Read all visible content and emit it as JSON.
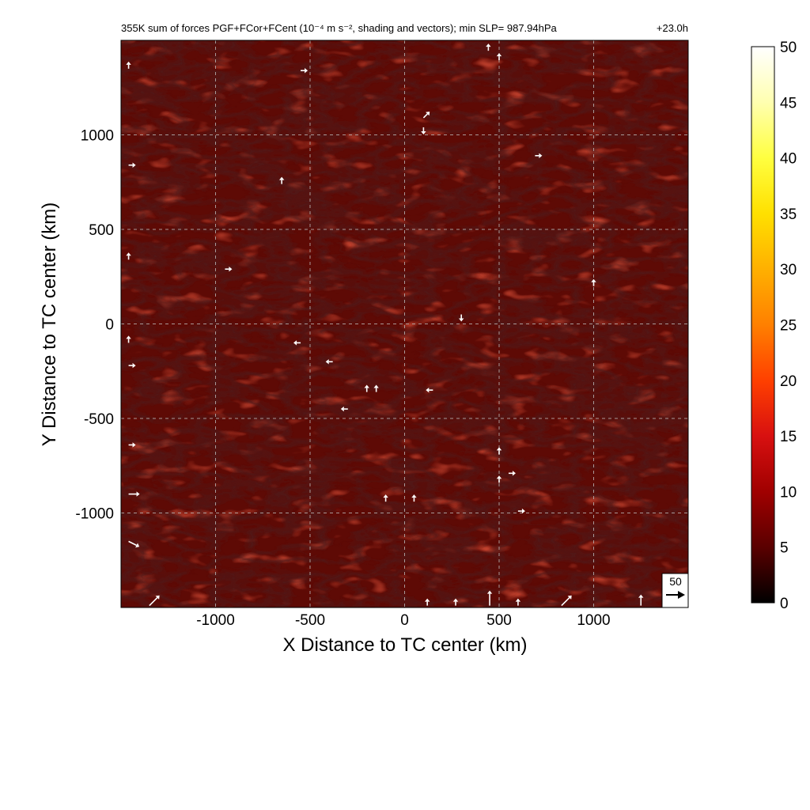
{
  "chart_data": {
    "type": "heatmap",
    "title": "355K sum of forces PGF+FCor+FCent (10⁻⁴ m s⁻², shading and vectors); min SLP= 987.94hPa",
    "time_label": "+23.0h",
    "xlabel": "X Distance to TC center (km)",
    "ylabel": "Y Distance to TC center (km)",
    "xlim": [
      -1500,
      1500
    ],
    "ylim": [
      -1500,
      1500
    ],
    "xticks": [
      -1000,
      -500,
      0,
      500,
      1000
    ],
    "yticks": [
      1000,
      500,
      0,
      -500,
      -1000
    ],
    "grid": true,
    "colorbar": {
      "range": [
        0,
        50
      ],
      "ticks": [
        0,
        5,
        10,
        15,
        20,
        25,
        30,
        35,
        40,
        45,
        50
      ],
      "colormap": [
        "#000000",
        "#5a0000",
        "#a00000",
        "#d81010",
        "#ff4000",
        "#ff8000",
        "#ffb000",
        "#ffe000",
        "#ffff40",
        "#ffffb0",
        "#ffffff"
      ]
    },
    "reference_vector": {
      "label": "50"
    },
    "field_description_colors": {
      "background": "#5e0a05",
      "dark_streaks": "#140202",
      "bright_streaks": "#a01208"
    },
    "vectors": [
      {
        "x": 443,
        "y": 1445,
        "u": 0,
        "v": 1
      },
      {
        "x": 500,
        "y": 1395,
        "u": 0,
        "v": 1
      },
      {
        "x": -550,
        "y": 1340,
        "u": 1,
        "v": 0
      },
      {
        "x": 100,
        "y": 1090,
        "u": 1,
        "v": 1
      },
      {
        "x": 100,
        "y": 1040,
        "u": 0,
        "v": -1
      },
      {
        "x": 690,
        "y": 890,
        "u": 1,
        "v": 0
      },
      {
        "x": -650,
        "y": 740,
        "u": 0,
        "v": 1
      },
      {
        "x": -950,
        "y": 290,
        "u": 1,
        "v": 0
      },
      {
        "x": 1000,
        "y": 200,
        "u": 0,
        "v": 1
      },
      {
        "x": 300,
        "y": 50,
        "u": 0,
        "v": -1
      },
      {
        "x": -550,
        "y": -100,
        "u": -1,
        "v": 0
      },
      {
        "x": -380,
        "y": -200,
        "u": -1,
        "v": 0
      },
      {
        "x": -200,
        "y": -360,
        "u": 0,
        "v": 1
      },
      {
        "x": -150,
        "y": -360,
        "u": 0,
        "v": 1
      },
      {
        "x": 150,
        "y": -350,
        "u": -1,
        "v": 0
      },
      {
        "x": -300,
        "y": -450,
        "u": -1,
        "v": 0
      },
      {
        "x": 500,
        "y": -690,
        "u": 0,
        "v": 1
      },
      {
        "x": 550,
        "y": -790,
        "u": 1,
        "v": 0
      },
      {
        "x": 500,
        "y": -840,
        "u": 0,
        "v": 1
      },
      {
        "x": -100,
        "y": -940,
        "u": 0,
        "v": 1
      },
      {
        "x": 50,
        "y": -940,
        "u": 0,
        "v": 1
      },
      {
        "x": 600,
        "y": -990,
        "u": 1,
        "v": 0
      },
      {
        "x": -1460,
        "y": -640,
        "u": 1,
        "v": 0
      },
      {
        "x": -1460,
        "y": -900,
        "u": 2,
        "v": 0
      },
      {
        "x": -1460,
        "y": -1150,
        "u": 2,
        "v": -1
      },
      {
        "x": -1460,
        "y": -220,
        "u": 1,
        "v": 0
      },
      {
        "x": -1460,
        "y": -100,
        "u": 0,
        "v": 1
      },
      {
        "x": -1460,
        "y": 340,
        "u": 0,
        "v": 1
      },
      {
        "x": -1460,
        "y": 840,
        "u": 1,
        "v": 0
      },
      {
        "x": -1460,
        "y": 1350,
        "u": 0,
        "v": 1
      },
      {
        "x": 450,
        "y": -1490,
        "u": 0,
        "v": 3
      },
      {
        "x": 830,
        "y": -1490,
        "u": 2,
        "v": 2
      },
      {
        "x": 1250,
        "y": -1490,
        "u": 0,
        "v": 2
      },
      {
        "x": -1350,
        "y": -1490,
        "u": 2,
        "v": 2
      },
      {
        "x": 600,
        "y": -1490,
        "u": 0,
        "v": 1
      },
      {
        "x": 120,
        "y": -1490,
        "u": 0,
        "v": 1
      },
      {
        "x": 270,
        "y": -1490,
        "u": 0,
        "v": 1
      }
    ]
  }
}
